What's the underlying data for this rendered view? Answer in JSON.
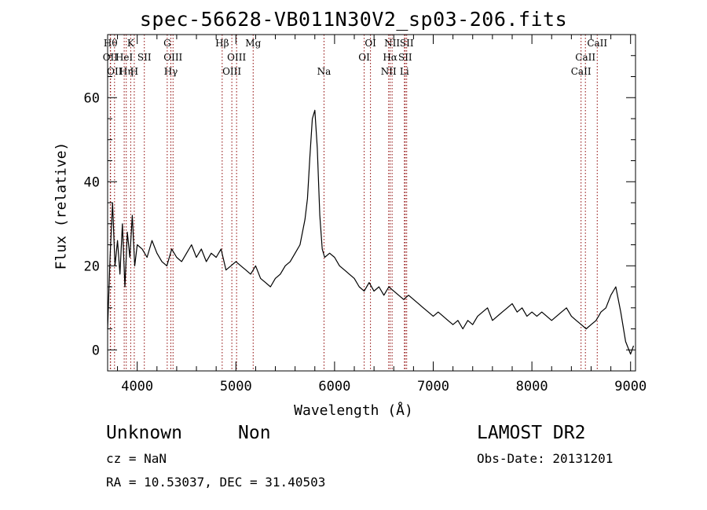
{
  "chart_data": {
    "type": "line",
    "title": "spec-56628-VB011N30V2_sp03-206.fits",
    "xlabel": "Wavelength (Å)",
    "ylabel": "Flux (relative)",
    "xlim": [
      3700,
      9050
    ],
    "ylim": [
      -5,
      75
    ],
    "xticks": [
      4000,
      5000,
      6000,
      7000,
      8000,
      9000
    ],
    "yticks": [
      0,
      20,
      40,
      60
    ],
    "grid": false,
    "series": [
      {
        "color": "#000000",
        "x": [
          3700,
          3725,
          3750,
          3775,
          3800,
          3825,
          3850,
          3875,
          3900,
          3925,
          3950,
          3975,
          4000,
          4050,
          4100,
          4150,
          4200,
          4250,
          4300,
          4350,
          4400,
          4450,
          4500,
          4550,
          4600,
          4650,
          4700,
          4750,
          4800,
          4850,
          4900,
          4950,
          5000,
          5050,
          5100,
          5150,
          5200,
          5250,
          5300,
          5350,
          5400,
          5450,
          5500,
          5550,
          5600,
          5650,
          5700,
          5725,
          5750,
          5775,
          5800,
          5825,
          5850,
          5875,
          5900,
          5950,
          6000,
          6050,
          6100,
          6150,
          6200,
          6250,
          6300,
          6350,
          6400,
          6450,
          6500,
          6550,
          6600,
          6650,
          6700,
          6750,
          6800,
          6850,
          6900,
          6950,
          7000,
          7050,
          7100,
          7150,
          7200,
          7250,
          7300,
          7350,
          7400,
          7450,
          7500,
          7550,
          7600,
          7650,
          7700,
          7750,
          7800,
          7850,
          7900,
          7950,
          8000,
          8050,
          8100,
          8150,
          8200,
          8250,
          8300,
          8350,
          8400,
          8450,
          8500,
          8550,
          8600,
          8650,
          8700,
          8750,
          8800,
          8850,
          8900,
          8950,
          9000,
          9030
        ],
        "values": [
          5,
          22,
          35,
          20,
          26,
          18,
          30,
          15,
          28,
          22,
          32,
          20,
          25,
          24,
          22,
          26,
          23,
          21,
          20,
          24,
          22,
          21,
          23,
          25,
          22,
          24,
          21,
          23,
          22,
          24,
          19,
          20,
          21,
          20,
          19,
          18,
          20,
          17,
          16,
          15,
          17,
          18,
          20,
          21,
          23,
          25,
          31,
          36,
          46,
          55,
          57,
          48,
          32,
          24,
          22,
          23,
          22,
          20,
          19,
          18,
          17,
          15,
          14,
          16,
          14,
          15,
          13,
          15,
          14,
          13,
          12,
          13,
          12,
          11,
          10,
          9,
          8,
          9,
          8,
          7,
          6,
          7,
          5,
          7,
          6,
          8,
          9,
          10,
          7,
          8,
          9,
          10,
          11,
          9,
          10,
          8,
          9,
          8,
          9,
          8,
          7,
          8,
          9,
          10,
          8,
          7,
          6,
          5,
          6,
          7,
          9,
          10,
          13,
          15,
          9,
          2,
          -1,
          1
        ]
      }
    ],
    "line_markers": [
      {
        "x": 3730,
        "label": "Hθ",
        "row": 0
      },
      {
        "x": 3727,
        "label": "OII",
        "row": 1
      },
      {
        "x": 3770,
        "label": "OII",
        "row": 2
      },
      {
        "x": 3868,
        "label": "HeI",
        "row": 1
      },
      {
        "x": 3889,
        "label": "Hη",
        "row": 2
      },
      {
        "x": 3934,
        "label": "K",
        "row": 0
      },
      {
        "x": 3970,
        "label": "H",
        "row": 2
      },
      {
        "x": 4072,
        "label": "SII",
        "row": 1
      },
      {
        "x": 4304,
        "label": "G",
        "row": 0
      },
      {
        "x": 4341,
        "label": "Hγ",
        "row": 2
      },
      {
        "x": 4363,
        "label": "OIII",
        "row": 1
      },
      {
        "x": 4861,
        "label": "Hβ",
        "row": 0
      },
      {
        "x": 4959,
        "label": "OIII",
        "row": 2
      },
      {
        "x": 5007,
        "label": "OIII",
        "row": 1
      },
      {
        "x": 5175,
        "label": "Mg",
        "row": 0
      },
      {
        "x": 5893,
        "label": "Na",
        "row": 2
      },
      {
        "x": 6300,
        "label": "OI",
        "row": 1
      },
      {
        "x": 6364,
        "label": "OI",
        "row": 0
      },
      {
        "x": 6548,
        "label": "NII",
        "row": 2
      },
      {
        "x": 6563,
        "label": "Hα",
        "row": 1
      },
      {
        "x": 6583,
        "label": "NII",
        "row": 0
      },
      {
        "x": 6708,
        "label": "Li",
        "row": 2
      },
      {
        "x": 6716,
        "label": "SII",
        "row": 1
      },
      {
        "x": 6731,
        "label": "SII",
        "row": 0
      },
      {
        "x": 8498,
        "label": "CaII",
        "row": 2
      },
      {
        "x": 8542,
        "label": "CaII",
        "row": 1
      },
      {
        "x": 8662,
        "label": "CaII",
        "row": 0
      }
    ]
  },
  "info": {
    "class": "Unknown",
    "subclass": "Non",
    "survey": "LAMOST DR2",
    "cz": "cz = NaN",
    "obs_date": "Obs-Date: 20131201",
    "coords": "RA =  10.53037, DEC =  31.40503"
  }
}
